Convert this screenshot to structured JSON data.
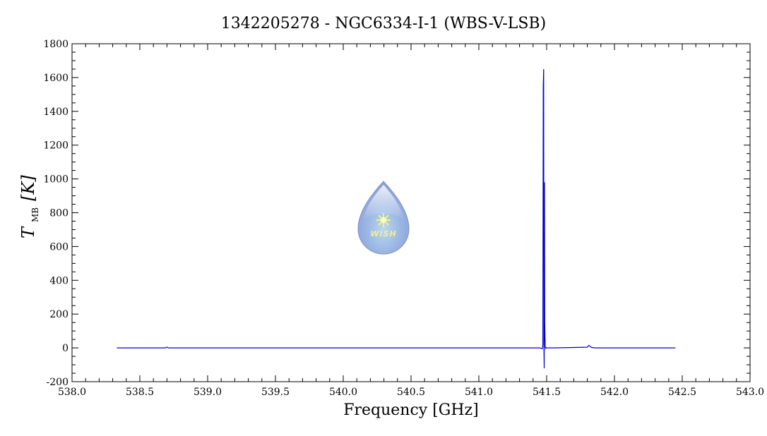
{
  "chart_data": {
    "type": "line",
    "title": "1342205278 - NGC6334-I-1 (WBS-V-LSB)",
    "xlabel": "Frequency [GHz]",
    "ylabel_main": "T",
    "ylabel_sub": "MB",
    "ylabel_unit": "[K]",
    "xlim": [
      538.0,
      543.0
    ],
    "ylim": [
      -200,
      1800
    ],
    "x_ticks": [
      "538.0",
      "538.5",
      "539.0",
      "539.5",
      "540.0",
      "540.5",
      "541.0",
      "541.5",
      "542.0",
      "542.5",
      "543.0"
    ],
    "y_ticks": [
      "-200",
      "0",
      "200",
      "400",
      "600",
      "800",
      "1000",
      "1200",
      "1400",
      "1600",
      "1800"
    ],
    "grid": false,
    "line_color": "#0000cc",
    "series": [
      {
        "x": [
          538.33,
          538.69,
          538.7,
          538.71,
          541.45,
          541.468,
          541.472,
          541.475,
          541.478,
          541.48,
          541.482,
          541.484,
          541.486,
          541.488,
          541.49,
          541.492,
          541.494,
          541.497,
          541.5,
          541.55,
          541.8,
          541.81,
          541.82,
          541.83,
          541.86,
          542.0,
          542.45
        ],
        "y": [
          0,
          0,
          5,
          0,
          0,
          -5,
          20,
          1550,
          1650,
          10,
          -120,
          980,
          150,
          60,
          10,
          -5,
          2,
          0,
          0,
          0,
          4,
          15,
          10,
          3,
          0,
          0,
          0
        ]
      }
    ]
  },
  "watermark": {
    "text": "WISH",
    "icon": "water-drop-logo-icon"
  }
}
